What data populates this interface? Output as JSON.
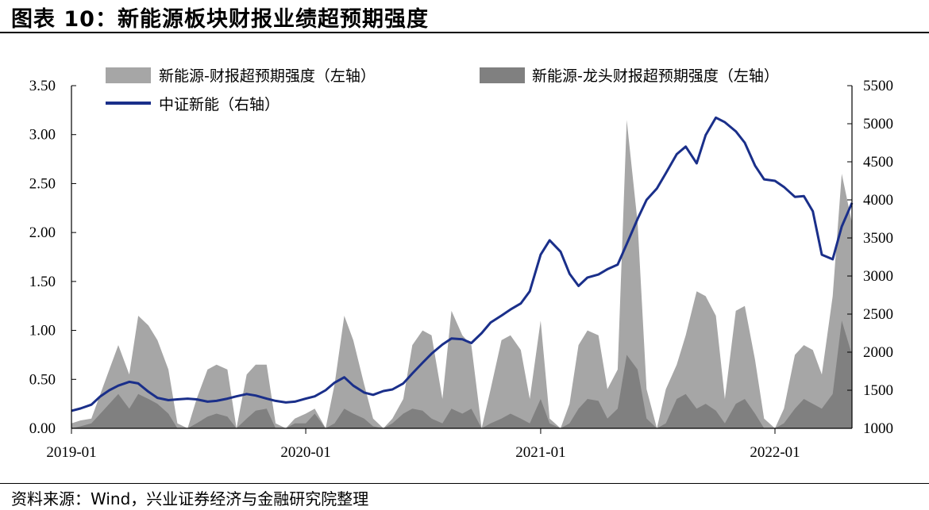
{
  "header": {
    "title": "图表 10：新能源板块财报业绩超预期强度"
  },
  "footer": {
    "source": "资料来源：Wind，兴业证券经济与金融研究院整理"
  },
  "chart_data": {
    "type": "area",
    "colors": {
      "area_sector": "#a6a6a6",
      "area_leaders": "#808080",
      "line_index": "#1a2f8a"
    },
    "legend": [
      {
        "key": "sector",
        "label": "新能源-财报超预期强度（左轴）",
        "color": "#a6a6a6"
      },
      {
        "key": "leaders",
        "label": "新能源-龙头财报超预期强度（左轴）",
        "color": "#808080"
      },
      {
        "key": "index",
        "label": "中证新能（右轴）",
        "color": "#1a2f8a"
      }
    ],
    "legend_placement": "top",
    "grid": false,
    "x_range": [
      "2019-01",
      "2022-05"
    ],
    "x_ticks": [
      "2019-01",
      "2020-01",
      "2021-01",
      "2022-01"
    ],
    "y_left": {
      "ylim": [
        0,
        3.5
      ],
      "ticks": [
        "0.00",
        "0.50",
        "1.00",
        "1.50",
        "2.00",
        "2.50",
        "3.00",
        "3.50"
      ]
    },
    "y_right": {
      "ylim": [
        1000,
        5500
      ],
      "ticks": [
        "1000",
        "1500",
        "2000",
        "2500",
        "3000",
        "3500",
        "4000",
        "4500",
        "5000",
        "5500"
      ]
    },
    "series": [
      {
        "key": "sector",
        "axis": "left",
        "x": [
          "2019-01-01",
          "2019-01-15",
          "2019-02-01",
          "2019-02-15",
          "2019-03-01",
          "2019-03-15",
          "2019-04-01",
          "2019-04-15",
          "2019-05-01",
          "2019-05-15",
          "2019-06-01",
          "2019-06-15",
          "2019-07-01",
          "2019-07-15",
          "2019-08-01",
          "2019-08-15",
          "2019-09-01",
          "2019-09-15",
          "2019-10-01",
          "2019-10-15",
          "2019-11-01",
          "2019-11-15",
          "2019-12-01",
          "2019-12-15",
          "2020-01-01",
          "2020-01-15",
          "2020-02-01",
          "2020-02-15",
          "2020-03-01",
          "2020-03-15",
          "2020-04-01",
          "2020-04-15",
          "2020-05-01",
          "2020-05-15",
          "2020-06-01",
          "2020-06-15",
          "2020-07-01",
          "2020-07-15",
          "2020-08-01",
          "2020-08-15",
          "2020-09-01",
          "2020-09-15",
          "2020-10-01",
          "2020-10-15",
          "2020-11-01",
          "2020-11-15",
          "2020-12-01",
          "2020-12-15",
          "2021-01-01",
          "2021-01-15",
          "2021-02-01",
          "2021-02-15",
          "2021-03-01",
          "2021-03-15",
          "2021-04-01",
          "2021-04-15",
          "2021-05-01",
          "2021-05-15",
          "2021-06-01",
          "2021-06-15",
          "2021-07-01",
          "2021-07-15",
          "2021-08-01",
          "2021-08-15",
          "2021-09-01",
          "2021-09-15",
          "2021-10-01",
          "2021-10-15",
          "2021-11-01",
          "2021-11-15",
          "2021-12-01",
          "2021-12-15",
          "2022-01-01",
          "2022-01-15",
          "2022-02-01",
          "2022-02-15",
          "2022-03-01",
          "2022-03-15",
          "2022-04-01",
          "2022-04-15",
          "2022-05-01"
        ],
        "values": [
          0.05,
          0.08,
          0.1,
          0.35,
          0.6,
          0.85,
          0.55,
          1.15,
          1.05,
          0.9,
          0.6,
          0.05,
          0.0,
          0.3,
          0.6,
          0.65,
          0.6,
          0.0,
          0.55,
          0.65,
          0.65,
          0.05,
          0.0,
          0.1,
          0.15,
          0.2,
          0.0,
          0.45,
          1.15,
          0.9,
          0.45,
          0.1,
          0.0,
          0.1,
          0.3,
          0.85,
          1.0,
          0.95,
          0.3,
          1.2,
          0.95,
          0.85,
          0.0,
          0.4,
          0.9,
          0.95,
          0.8,
          0.3,
          1.1,
          0.1,
          0.0,
          0.25,
          0.85,
          1.0,
          0.95,
          0.4,
          0.6,
          3.15,
          2.1,
          0.4,
          0.0,
          0.4,
          0.65,
          0.95,
          1.4,
          1.35,
          1.15,
          0.3,
          1.2,
          1.25,
          0.7,
          0.1,
          0.0,
          0.2,
          0.75,
          0.85,
          0.8,
          0.55,
          1.35,
          2.6,
          2.1
        ]
      },
      {
        "key": "leaders",
        "axis": "left",
        "x": [
          "2019-01-01",
          "2019-01-15",
          "2019-02-01",
          "2019-02-15",
          "2019-03-01",
          "2019-03-15",
          "2019-04-01",
          "2019-04-15",
          "2019-05-01",
          "2019-05-15",
          "2019-06-01",
          "2019-06-15",
          "2019-07-01",
          "2019-07-15",
          "2019-08-01",
          "2019-08-15",
          "2019-09-01",
          "2019-09-15",
          "2019-10-01",
          "2019-10-15",
          "2019-11-01",
          "2019-11-15",
          "2019-12-01",
          "2019-12-15",
          "2020-01-01",
          "2020-01-15",
          "2020-02-01",
          "2020-02-15",
          "2020-03-01",
          "2020-03-15",
          "2020-04-01",
          "2020-04-15",
          "2020-05-01",
          "2020-05-15",
          "2020-06-01",
          "2020-06-15",
          "2020-07-01",
          "2020-07-15",
          "2020-08-01",
          "2020-08-15",
          "2020-09-01",
          "2020-09-15",
          "2020-10-01",
          "2020-10-15",
          "2020-11-01",
          "2020-11-15",
          "2020-12-01",
          "2020-12-15",
          "2021-01-01",
          "2021-01-15",
          "2021-02-01",
          "2021-02-15",
          "2021-03-01",
          "2021-03-15",
          "2021-04-01",
          "2021-04-15",
          "2021-05-01",
          "2021-05-15",
          "2021-06-01",
          "2021-06-15",
          "2021-07-01",
          "2021-07-15",
          "2021-08-01",
          "2021-08-15",
          "2021-09-01",
          "2021-09-15",
          "2021-10-01",
          "2021-10-15",
          "2021-11-01",
          "2021-11-15",
          "2021-12-01",
          "2021-12-15",
          "2022-01-01",
          "2022-01-15",
          "2022-02-01",
          "2022-02-15",
          "2022-03-01",
          "2022-03-15",
          "2022-04-01",
          "2022-04-15",
          "2022-05-01"
        ],
        "values": [
          0.0,
          0.02,
          0.05,
          0.15,
          0.25,
          0.35,
          0.2,
          0.35,
          0.3,
          0.25,
          0.15,
          0.0,
          0.0,
          0.05,
          0.12,
          0.15,
          0.12,
          0.0,
          0.1,
          0.18,
          0.2,
          0.0,
          0.0,
          0.05,
          0.05,
          0.15,
          0.0,
          0.05,
          0.2,
          0.15,
          0.1,
          0.02,
          0.0,
          0.05,
          0.15,
          0.2,
          0.18,
          0.1,
          0.05,
          0.2,
          0.15,
          0.2,
          0.0,
          0.05,
          0.1,
          0.15,
          0.1,
          0.05,
          0.3,
          0.05,
          0.0,
          0.05,
          0.2,
          0.3,
          0.28,
          0.1,
          0.2,
          0.75,
          0.6,
          0.1,
          0.0,
          0.05,
          0.3,
          0.35,
          0.2,
          0.25,
          0.18,
          0.05,
          0.25,
          0.3,
          0.15,
          0.0,
          0.0,
          0.05,
          0.2,
          0.3,
          0.25,
          0.2,
          0.35,
          1.1,
          0.75
        ]
      },
      {
        "key": "index",
        "axis": "right",
        "x": [
          "2019-01-01",
          "2019-01-15",
          "2019-02-01",
          "2019-02-15",
          "2019-03-01",
          "2019-03-15",
          "2019-04-01",
          "2019-04-15",
          "2019-05-01",
          "2019-05-15",
          "2019-06-01",
          "2019-06-15",
          "2019-07-01",
          "2019-07-15",
          "2019-08-01",
          "2019-08-15",
          "2019-09-01",
          "2019-09-15",
          "2019-10-01",
          "2019-10-15",
          "2019-11-01",
          "2019-11-15",
          "2019-12-01",
          "2019-12-15",
          "2020-01-01",
          "2020-01-15",
          "2020-02-01",
          "2020-02-15",
          "2020-03-01",
          "2020-03-15",
          "2020-04-01",
          "2020-04-15",
          "2020-05-01",
          "2020-05-15",
          "2020-06-01",
          "2020-06-15",
          "2020-07-01",
          "2020-07-15",
          "2020-08-01",
          "2020-08-15",
          "2020-09-01",
          "2020-09-15",
          "2020-10-01",
          "2020-10-15",
          "2020-11-01",
          "2020-11-15",
          "2020-12-01",
          "2020-12-15",
          "2021-01-01",
          "2021-01-15",
          "2021-02-01",
          "2021-02-15",
          "2021-03-01",
          "2021-03-15",
          "2021-04-01",
          "2021-04-15",
          "2021-05-01",
          "2021-05-15",
          "2021-06-01",
          "2021-06-15",
          "2021-07-01",
          "2021-07-15",
          "2021-08-01",
          "2021-08-15",
          "2021-09-01",
          "2021-09-15",
          "2021-10-01",
          "2021-10-15",
          "2021-11-01",
          "2021-11-15",
          "2021-12-01",
          "2021-12-15",
          "2022-01-01",
          "2022-01-15",
          "2022-02-01",
          "2022-02-15",
          "2022-03-01",
          "2022-03-15",
          "2022-04-01",
          "2022-04-15",
          "2022-05-01"
        ],
        "values": [
          1230,
          1260,
          1310,
          1420,
          1500,
          1560,
          1610,
          1590,
          1480,
          1400,
          1370,
          1380,
          1390,
          1380,
          1350,
          1360,
          1390,
          1420,
          1450,
          1430,
          1390,
          1360,
          1340,
          1350,
          1390,
          1420,
          1500,
          1600,
          1670,
          1560,
          1470,
          1440,
          1490,
          1510,
          1590,
          1720,
          1860,
          1980,
          2100,
          2180,
          2170,
          2120,
          2250,
          2390,
          2480,
          2560,
          2640,
          2800,
          3280,
          3470,
          3320,
          3030,
          2870,
          2980,
          3020,
          3090,
          3150,
          3420,
          3750,
          4000,
          4150,
          4350,
          4600,
          4700,
          4480,
          4850,
          5080,
          5020,
          4900,
          4750,
          4450,
          4270,
          4250,
          4170,
          4040,
          4050,
          3850,
          3280,
          3220,
          3650,
          3960
        ]
      }
    ]
  }
}
